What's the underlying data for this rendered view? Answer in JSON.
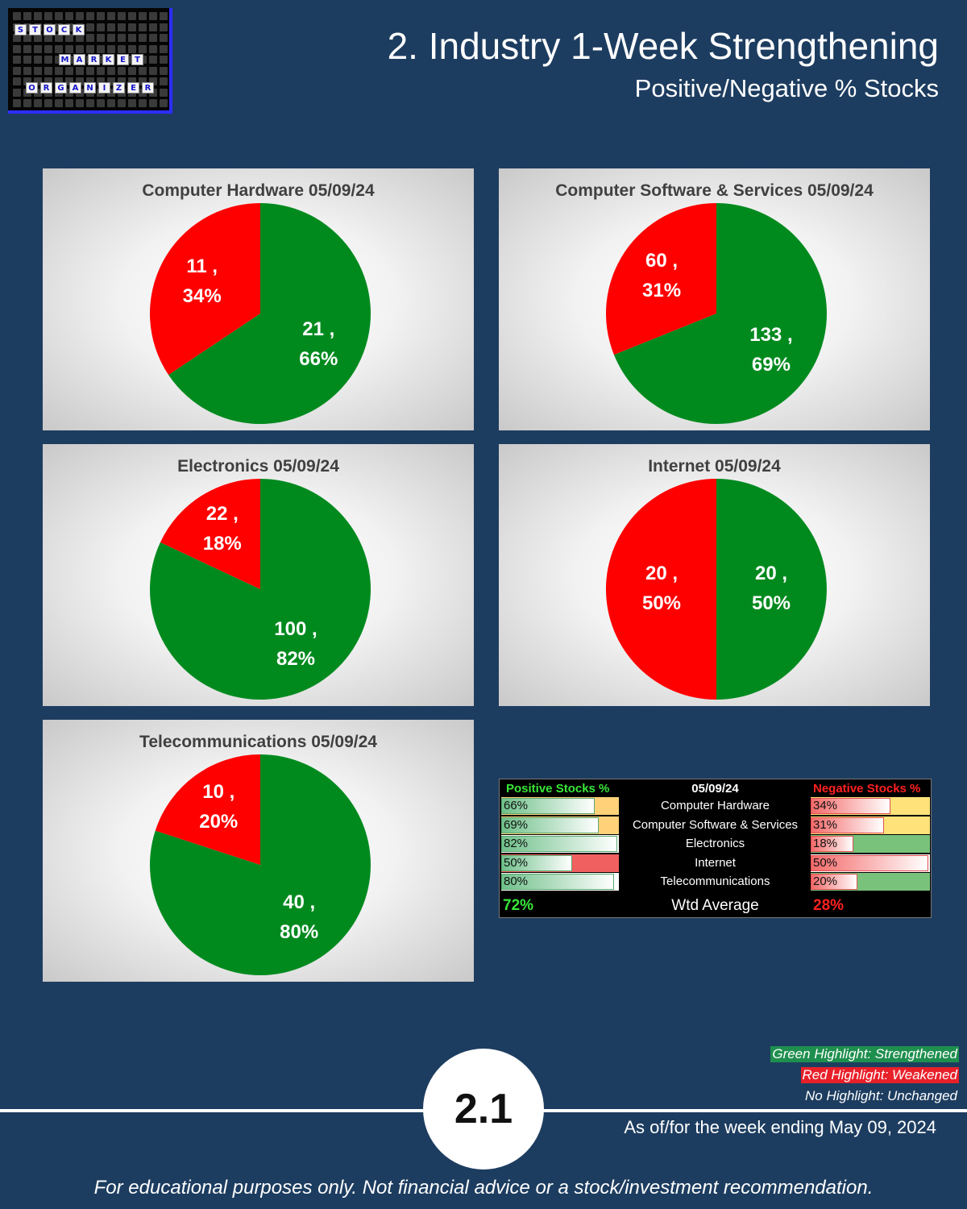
{
  "logo": {
    "words": [
      "STOCK",
      "MARKET",
      "ORGANIZER"
    ]
  },
  "header": {
    "title": "2. Industry 1-Week Strengthening",
    "subtitle": "Positive/Negative % Stocks"
  },
  "colors": {
    "positive": "#008a1e",
    "negative": "#ff0000",
    "background": "#1d3d60",
    "strengthened": "#1e8f4e",
    "weakened": "#e8202a",
    "unchanged_neg": "#ffe27a"
  },
  "chart_data": [
    {
      "type": "pie",
      "title": "Computer Hardware 05/09/24",
      "categories": [
        "Positive",
        "Negative"
      ],
      "values": [
        21,
        11
      ],
      "percents": [
        66,
        34
      ],
      "labels": [
        "21 , 66%",
        "11 , 34%"
      ],
      "label_lines": [
        [
          "21 ,",
          "66%"
        ],
        [
          "11 ,",
          "34%"
        ]
      ]
    },
    {
      "type": "pie",
      "title": "Computer Software & Services 05/09/24",
      "categories": [
        "Positive",
        "Negative"
      ],
      "values": [
        133,
        60
      ],
      "percents": [
        69,
        31
      ],
      "labels": [
        "133 , 69%",
        "60 , 31%"
      ],
      "label_lines": [
        [
          "133 ,",
          "69%"
        ],
        [
          "60 ,",
          "31%"
        ]
      ]
    },
    {
      "type": "pie",
      "title": "Electronics 05/09/24",
      "categories": [
        "Positive",
        "Negative"
      ],
      "values": [
        100,
        22
      ],
      "percents": [
        82,
        18
      ],
      "labels": [
        "100 , 82%",
        "22 , 18%"
      ],
      "label_lines": [
        [
          "100 ,",
          "82%"
        ],
        [
          "22 ,",
          "18%"
        ]
      ]
    },
    {
      "type": "pie",
      "title": "Internet 05/09/24",
      "categories": [
        "Positive",
        "Negative"
      ],
      "values": [
        20,
        20
      ],
      "percents": [
        50,
        50
      ],
      "labels": [
        "20 , 50%",
        "20 , 50%"
      ],
      "label_lines": [
        [
          "20 ,",
          "50%"
        ],
        [
          "20 ,",
          "50%"
        ]
      ]
    },
    {
      "type": "pie",
      "title": "Telecommunications 05/09/24",
      "categories": [
        "Positive",
        "Negative"
      ],
      "values": [
        40,
        10
      ],
      "percents": [
        80,
        20
      ],
      "labels": [
        "40 , 80%",
        "10 , 20%"
      ],
      "label_lines": [
        [
          "40 ,",
          "80%"
        ],
        [
          "10 ,",
          "20%"
        ]
      ]
    }
  ],
  "summary": {
    "header_positive": "Positive Stocks %",
    "header_date": "05/09/24",
    "header_negative": "Negative Stocks %",
    "rows": [
      {
        "industry": "Computer Hardware",
        "positive": "66%",
        "negative": "34%",
        "pos_value": 66,
        "neg_value": 34,
        "status": "unchanged"
      },
      {
        "industry": "Computer Software & Services",
        "positive": "69%",
        "negative": "31%",
        "pos_value": 69,
        "neg_value": 31,
        "status": "unchanged"
      },
      {
        "industry": "Electronics",
        "positive": "82%",
        "negative": "18%",
        "pos_value": 82,
        "neg_value": 18,
        "status": "strengthened"
      },
      {
        "industry": "Internet",
        "positive": "50%",
        "negative": "50%",
        "pos_value": 50,
        "neg_value": 50,
        "status": "weakened"
      },
      {
        "industry": "Telecommunications",
        "positive": "80%",
        "negative": "20%",
        "pos_value": 80,
        "neg_value": 20,
        "status": "strengthened"
      }
    ],
    "total_label": "Wtd Average",
    "total_positive": "72%",
    "total_negative": "28%"
  },
  "legend": {
    "green": "Green Highlight: Strengthened",
    "red": "Red Highlight: Weakened",
    "none": "No Highlight: Unchanged"
  },
  "footer": {
    "page_number": "2.1",
    "as_of": "As of/for the week ending May 09, 2024",
    "disclaimer": "For educational purposes only. Not financial advice or a stock/investment recommendation."
  }
}
